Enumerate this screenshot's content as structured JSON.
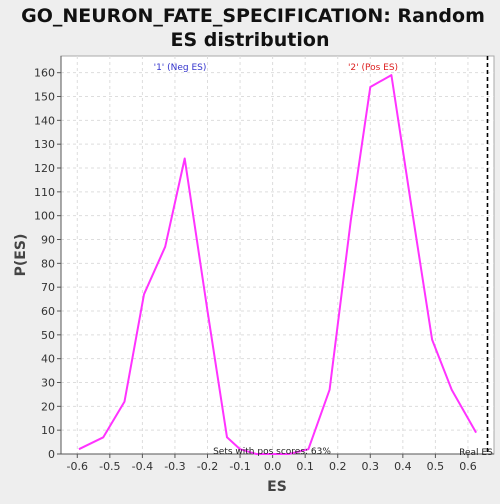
{
  "chart_data": {
    "type": "line",
    "title_line1": "GO_NEURON_FATE_SPECIFICATION: Random",
    "title_line2": "ES distribution",
    "xlabel": "ES",
    "ylabel": "P(ES)",
    "xlim": [
      -0.65,
      0.68
    ],
    "ylim": [
      0,
      167
    ],
    "x_ticks": [
      -0.6,
      -0.5,
      -0.4,
      -0.3,
      -0.2,
      -0.1,
      0.0,
      0.1,
      0.2,
      0.3,
      0.4,
      0.5,
      0.6
    ],
    "x_tick_labels": [
      "-0.6",
      "-0.5",
      "-0.4",
      "-0.3",
      "-0.2",
      "-0.1",
      "0.0",
      "0.1",
      "0.2",
      "0.3",
      "0.4",
      "0.5",
      "0.6"
    ],
    "y_ticks": [
      0,
      10,
      20,
      30,
      40,
      50,
      60,
      70,
      80,
      90,
      100,
      110,
      120,
      130,
      140,
      150,
      160
    ],
    "y_tick_labels": [
      "0",
      "10",
      "20",
      "30",
      "40",
      "50",
      "60",
      "70",
      "80",
      "90",
      "100",
      "110",
      "120",
      "130",
      "140",
      "150",
      "160"
    ],
    "grid": true,
    "series": [
      {
        "color": "#ff33ff",
        "x": [
          -0.595,
          -0.52,
          -0.455,
          -0.395,
          -0.33,
          -0.27,
          -0.2,
          -0.14,
          -0.1,
          -0.05,
          0.0,
          0.05,
          0.11,
          0.175,
          0.24,
          0.3,
          0.365,
          0.425,
          0.49,
          0.55,
          0.625
        ],
        "y": [
          2,
          7,
          22,
          67,
          87,
          124,
          60,
          7,
          2,
          0,
          0,
          0,
          2,
          27,
          98,
          154,
          159,
          105,
          48,
          27,
          9
        ]
      }
    ],
    "neg_label": "'1' (Neg ES)",
    "neg_label_color": "#3333cc",
    "pos_label": "'2' (Pos ES)",
    "pos_label_color": "#dd2222",
    "real_es_value": 0.66,
    "real_es_label": "Real ES",
    "annotation": "Sets with pos scores: 63%"
  }
}
